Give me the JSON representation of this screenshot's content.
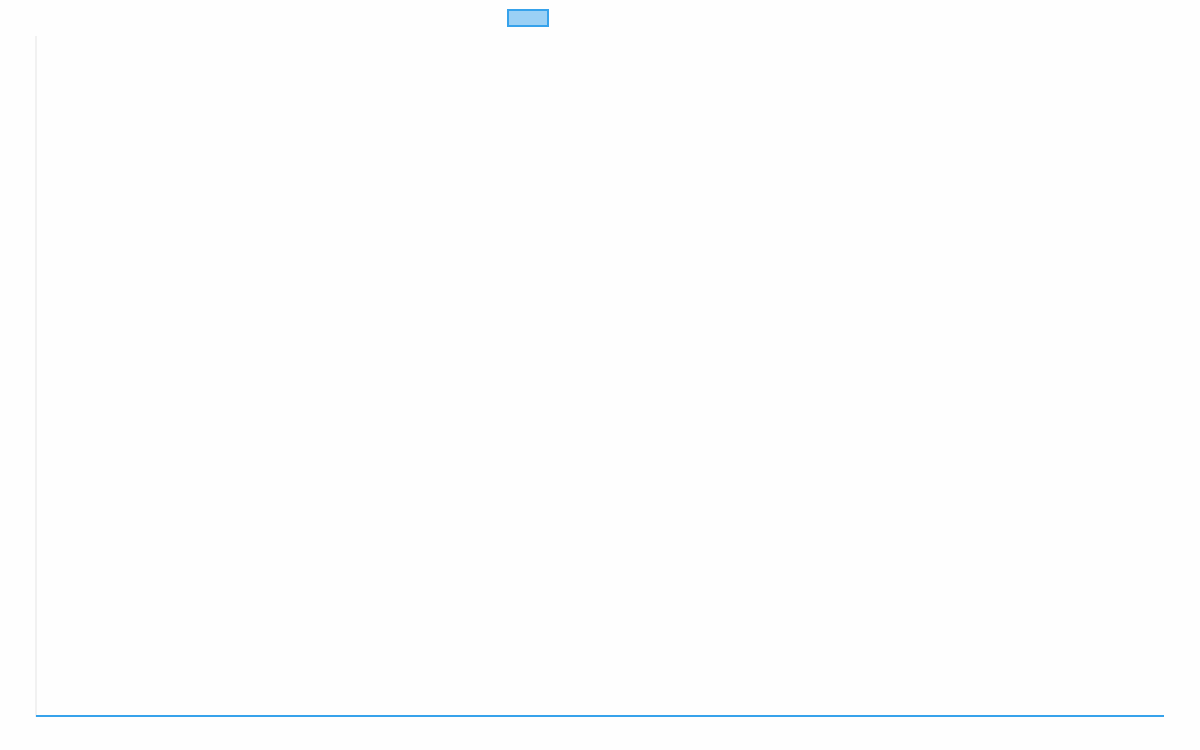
{
  "chart_data": {
    "type": "line",
    "title": "",
    "xlabel": "",
    "ylabel": "",
    "categories": [
      "",
      ""
    ],
    "series": [
      {
        "values": [
          0,
          0
        ],
        "border_color": "#36a2eb",
        "fill_color": "#9ad0f5"
      }
    ],
    "ylim": [
      0,
      1
    ],
    "grid": false,
    "legend_position": "top"
  }
}
